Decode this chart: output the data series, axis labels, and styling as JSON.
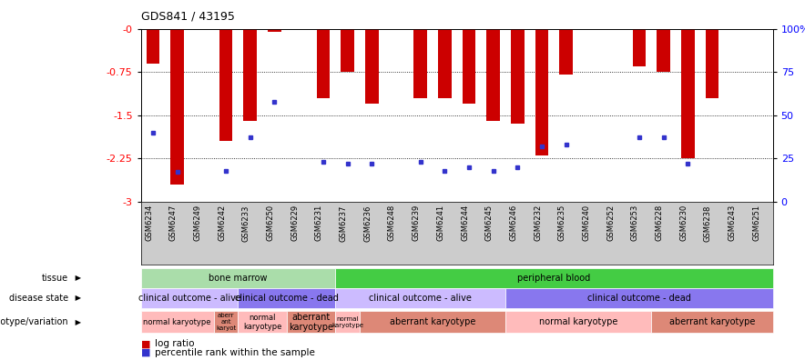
{
  "title": "GDS841 / 43195",
  "samples": [
    "GSM6234",
    "GSM6247",
    "GSM6249",
    "GSM6242",
    "GSM6233",
    "GSM6250",
    "GSM6229",
    "GSM6231",
    "GSM6237",
    "GSM6236",
    "GSM6248",
    "GSM6239",
    "GSM6241",
    "GSM6244",
    "GSM6245",
    "GSM6246",
    "GSM6232",
    "GSM6235",
    "GSM6240",
    "GSM6252",
    "GSM6253",
    "GSM6228",
    "GSM6230",
    "GSM6238",
    "GSM6243",
    "GSM6251"
  ],
  "log_ratios": [
    -0.6,
    -2.7,
    0.0,
    -1.95,
    -1.6,
    -0.05,
    0.0,
    -1.2,
    -0.75,
    -1.3,
    0.0,
    -1.2,
    -1.2,
    -1.3,
    -1.6,
    -1.65,
    -2.2,
    -0.8,
    0.0,
    0.0,
    -0.65,
    -0.75,
    -2.25,
    -1.2,
    0.0,
    0.0
  ],
  "percentile_ranks": [
    40,
    17,
    0,
    18,
    37,
    58,
    0,
    23,
    22,
    22,
    0,
    23,
    18,
    20,
    18,
    20,
    32,
    33,
    0,
    0,
    37,
    37,
    22,
    0,
    0,
    0
  ],
  "ylim_min": -3,
  "ylim_max": 0,
  "yticks": [
    0,
    -0.75,
    -1.5,
    -2.25,
    -3
  ],
  "ytick_labels": [
    "-0",
    "-0.75",
    "-1.5",
    "-2.25",
    "-3"
  ],
  "right_yticks": [
    0,
    25,
    50,
    75,
    100
  ],
  "right_ytick_labels": [
    "0",
    "25",
    "50",
    "75",
    "100%"
  ],
  "bar_color": "#cc0000",
  "dot_color": "#3333cc",
  "tissue_groups": [
    {
      "label": "bone marrow",
      "start": 0,
      "end": 8,
      "color": "#aaeea a"
    },
    {
      "label": "peripheral blood",
      "start": 8,
      "end": 26,
      "color": "#44bb44"
    }
  ],
  "disease_groups": [
    {
      "label": "clinical outcome - alive",
      "start": 0,
      "end": 4,
      "color": "#ccbbff"
    },
    {
      "label": "clinical outcome - dead",
      "start": 4,
      "end": 8,
      "color": "#8877ee"
    },
    {
      "label": "clinical outcome - alive",
      "start": 8,
      "end": 15,
      "color": "#ccbbff"
    },
    {
      "label": "clinical outcome - dead",
      "start": 15,
      "end": 26,
      "color": "#8877ee"
    }
  ],
  "geno_groups": [
    {
      "label": "normal karyotype",
      "start": 0,
      "end": 3,
      "color": "#ffbbbb",
      "fontsize": 6
    },
    {
      "label": "aberr\nant\nkaryot",
      "start": 3,
      "end": 4,
      "color": "#dd8877",
      "fontsize": 5
    },
    {
      "label": "normal\nkaryotype",
      "start": 4,
      "end": 6,
      "color": "#ffbbbb",
      "fontsize": 6
    },
    {
      "label": "aberrant\nkaryotype",
      "start": 6,
      "end": 8,
      "color": "#dd8877",
      "fontsize": 7
    },
    {
      "label": "normal\nkaryotype",
      "start": 8,
      "end": 9,
      "color": "#ffbbbb",
      "fontsize": 5
    },
    {
      "label": "aberrant karyotype",
      "start": 9,
      "end": 15,
      "color": "#dd8877",
      "fontsize": 7
    },
    {
      "label": "normal karyotype",
      "start": 15,
      "end": 21,
      "color": "#ffbbbb",
      "fontsize": 7
    },
    {
      "label": "aberrant karyotype",
      "start": 21,
      "end": 26,
      "color": "#dd8877",
      "fontsize": 7
    }
  ],
  "xtick_bg_color": "#cccccc",
  "fig_bg_color": "#ffffff",
  "spine_color": "#000000"
}
